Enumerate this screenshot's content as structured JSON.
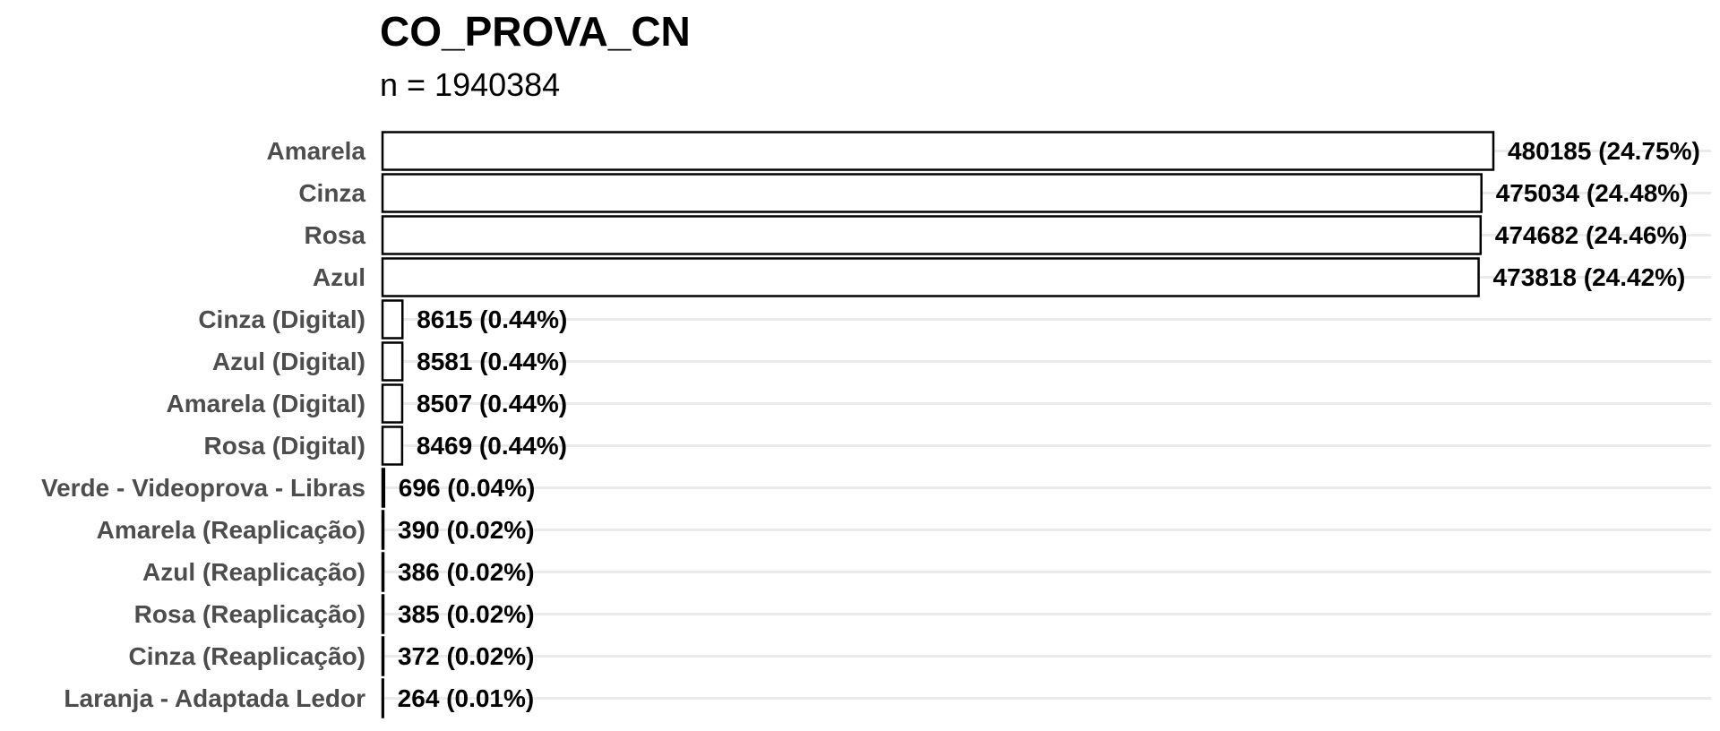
{
  "chart_data": {
    "type": "bar",
    "orientation": "horizontal",
    "title": "CO_PROVA_CN",
    "subtitle": "n = 1940384",
    "xlabel": "",
    "ylabel": "",
    "grid": true,
    "legend": "none",
    "categories": [
      "Amarela",
      "Cinza",
      "Rosa",
      "Azul",
      "Cinza (Digital)",
      "Azul (Digital)",
      "Amarela (Digital)",
      "Rosa (Digital)",
      "Verde - Videoprova - Libras",
      "Amarela (Reaplicação)",
      "Azul (Reaplicação)",
      "Rosa (Reaplicação)",
      "Cinza (Reaplicação)",
      "Laranja - Adaptada Ledor"
    ],
    "values": [
      480185,
      475034,
      474682,
      473818,
      8615,
      8581,
      8507,
      8469,
      696,
      390,
      386,
      385,
      372,
      264
    ],
    "data_labels": [
      "480185 (24.75%)",
      "475034 (24.48%)",
      "474682 (24.46%)",
      "473818 (24.42%)",
      "8615 (0.44%)",
      "8581 (0.44%)",
      "8507 (0.44%)",
      "8469 (0.44%)",
      "696 (0.04%)",
      "390 (0.02%)",
      "386 (0.02%)",
      "385 (0.02%)",
      "372 (0.02%)",
      "264 (0.01%)"
    ],
    "colors": {
      "bar_fill": "#ffffff",
      "bar_stroke": "#000000",
      "gridline": "#ebebeb",
      "category_text": "#4d4d4d",
      "value_text": "#000000"
    }
  }
}
